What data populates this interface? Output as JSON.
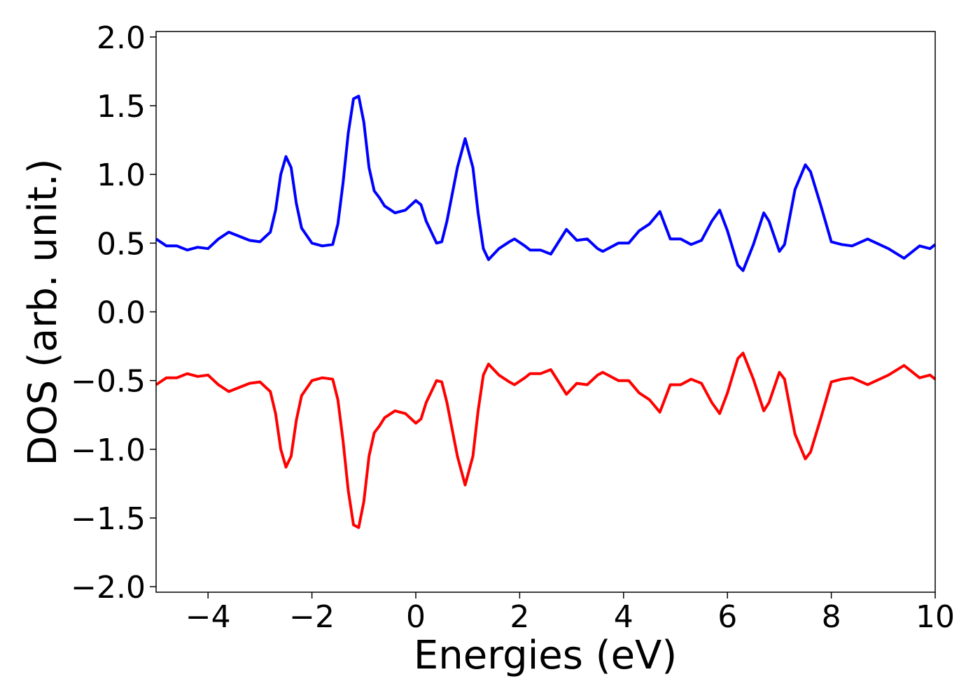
{
  "chart_data": {
    "type": "line",
    "x_label": "Energies (eV)",
    "y_label": "DOS (arb. unit.)",
    "x": [
      -5,
      -4.8,
      -4.6,
      -4.4,
      -4.2,
      -4.0,
      -3.8,
      -3.6,
      -3.4,
      -3.2,
      -3.0,
      -2.8,
      -2.7,
      -2.6,
      -2.5,
      -2.4,
      -2.3,
      -2.2,
      -2.0,
      -1.8,
      -1.6,
      -1.5,
      -1.4,
      -1.3,
      -1.2,
      -1.1,
      -1.0,
      -0.9,
      -0.8,
      -0.7,
      -0.6,
      -0.4,
      -0.2,
      0.0,
      0.1,
      0.2,
      0.4,
      0.5,
      0.6,
      0.8,
      0.95,
      1.1,
      1.2,
      1.3,
      1.4,
      1.6,
      1.8,
      1.9,
      2.1,
      2.2,
      2.4,
      2.6,
      2.8,
      2.9,
      3.1,
      3.3,
      3.5,
      3.6,
      3.9,
      4.1,
      4.3,
      4.5,
      4.7,
      4.9,
      5.1,
      5.3,
      5.5,
      5.7,
      5.85,
      6.0,
      6.2,
      6.3,
      6.5,
      6.7,
      6.8,
      7.0,
      7.1,
      7.3,
      7.5,
      7.6,
      7.8,
      8.0,
      8.2,
      8.4,
      8.7,
      9.1,
      9.4,
      9.7,
      9.9,
      10.0
    ],
    "series": [
      {
        "color": "#0000ff",
        "values": [
          0.53,
          0.48,
          0.48,
          0.45,
          0.47,
          0.46,
          0.53,
          0.58,
          0.55,
          0.52,
          0.51,
          0.58,
          0.74,
          1.0,
          1.13,
          1.05,
          0.79,
          0.61,
          0.5,
          0.48,
          0.49,
          0.64,
          0.94,
          1.3,
          1.55,
          1.57,
          1.38,
          1.05,
          0.88,
          0.83,
          0.77,
          0.72,
          0.74,
          0.81,
          0.78,
          0.66,
          0.5,
          0.51,
          0.66,
          1.05,
          1.26,
          1.05,
          0.72,
          0.46,
          0.38,
          0.46,
          0.51,
          0.53,
          0.48,
          0.45,
          0.45,
          0.42,
          0.54,
          0.6,
          0.52,
          0.53,
          0.46,
          0.44,
          0.5,
          0.5,
          0.59,
          0.64,
          0.73,
          0.53,
          0.53,
          0.49,
          0.52,
          0.66,
          0.74,
          0.59,
          0.34,
          0.3,
          0.49,
          0.72,
          0.66,
          0.44,
          0.49,
          0.89,
          1.07,
          1.02,
          0.77,
          0.51,
          0.49,
          0.48,
          0.53,
          0.46,
          0.39,
          0.48,
          0.46,
          0.49
        ]
      },
      {
        "color": "#ff0000",
        "values": [
          -0.53,
          -0.48,
          -0.48,
          -0.45,
          -0.47,
          -0.46,
          -0.53,
          -0.58,
          -0.55,
          -0.52,
          -0.51,
          -0.58,
          -0.74,
          -1.0,
          -1.13,
          -1.05,
          -0.79,
          -0.61,
          -0.5,
          -0.48,
          -0.49,
          -0.64,
          -0.94,
          -1.3,
          -1.55,
          -1.57,
          -1.38,
          -1.05,
          -0.88,
          -0.83,
          -0.77,
          -0.72,
          -0.74,
          -0.81,
          -0.78,
          -0.66,
          -0.5,
          -0.51,
          -0.66,
          -1.05,
          -1.26,
          -1.05,
          -0.72,
          -0.46,
          -0.38,
          -0.46,
          -0.51,
          -0.53,
          -0.48,
          -0.45,
          -0.45,
          -0.42,
          -0.54,
          -0.6,
          -0.52,
          -0.53,
          -0.46,
          -0.44,
          -0.5,
          -0.5,
          -0.59,
          -0.64,
          -0.73,
          -0.53,
          -0.53,
          -0.49,
          -0.52,
          -0.66,
          -0.74,
          -0.59,
          -0.34,
          -0.3,
          -0.49,
          -0.72,
          -0.66,
          -0.44,
          -0.49,
          -0.89,
          -1.07,
          -1.02,
          -0.77,
          -0.51,
          -0.49,
          -0.48,
          -0.53,
          -0.46,
          -0.39,
          -0.48,
          -0.46,
          -0.49
        ]
      }
    ],
    "xlim": [
      -5,
      10
    ],
    "xticks": [
      {
        "value": -4,
        "label": "−4"
      },
      {
        "value": -2,
        "label": "−2"
      },
      0,
      2,
      4,
      6,
      8,
      10
    ],
    "ylim": [
      -2.04,
      2.04
    ],
    "yticks": [
      {
        "value": -2,
        "label": "−2.0"
      },
      {
        "value": -1.5,
        "label": "−1.5"
      },
      {
        "value": -1,
        "label": "−1.0"
      },
      {
        "value": -0.5,
        "label": "−0.5"
      },
      {
        "value": 0,
        "label": "0.0"
      },
      {
        "value": 0.5,
        "label": "0.5"
      },
      {
        "value": 1,
        "label": "1.0"
      },
      {
        "value": 1.5,
        "label": "1.5"
      },
      {
        "value": 2,
        "label": "2.0"
      }
    ],
    "grid": false
  }
}
